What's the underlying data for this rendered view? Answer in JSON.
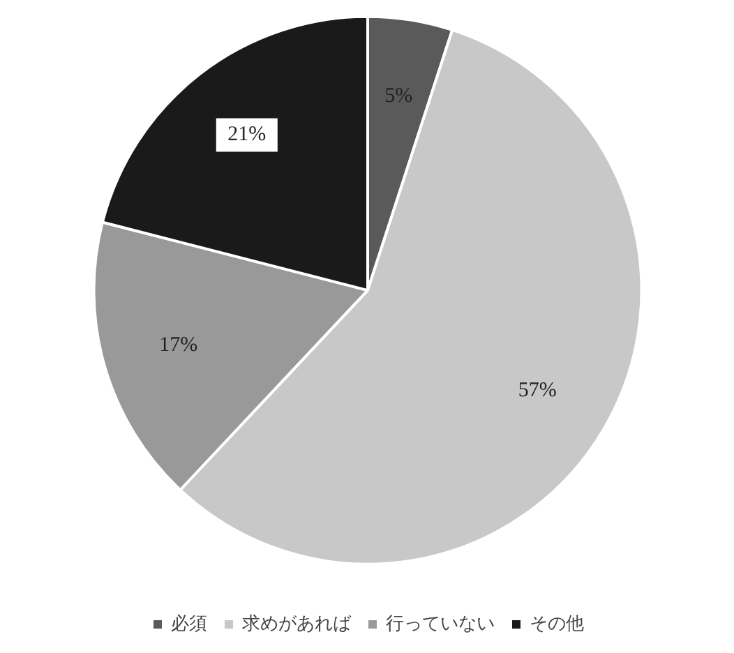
{
  "chart_data": {
    "type": "pie",
    "categories": [
      "必須",
      "求めがあれば",
      "行っていない",
      "その他"
    ],
    "values": [
      5,
      57,
      17,
      21
    ],
    "colors": [
      "#5a5a5a",
      "#c8c8c8",
      "#999999",
      "#1a1a1a"
    ],
    "value_labels": [
      "5%",
      "57%",
      "17%",
      "21%"
    ],
    "legend": "bottom"
  }
}
